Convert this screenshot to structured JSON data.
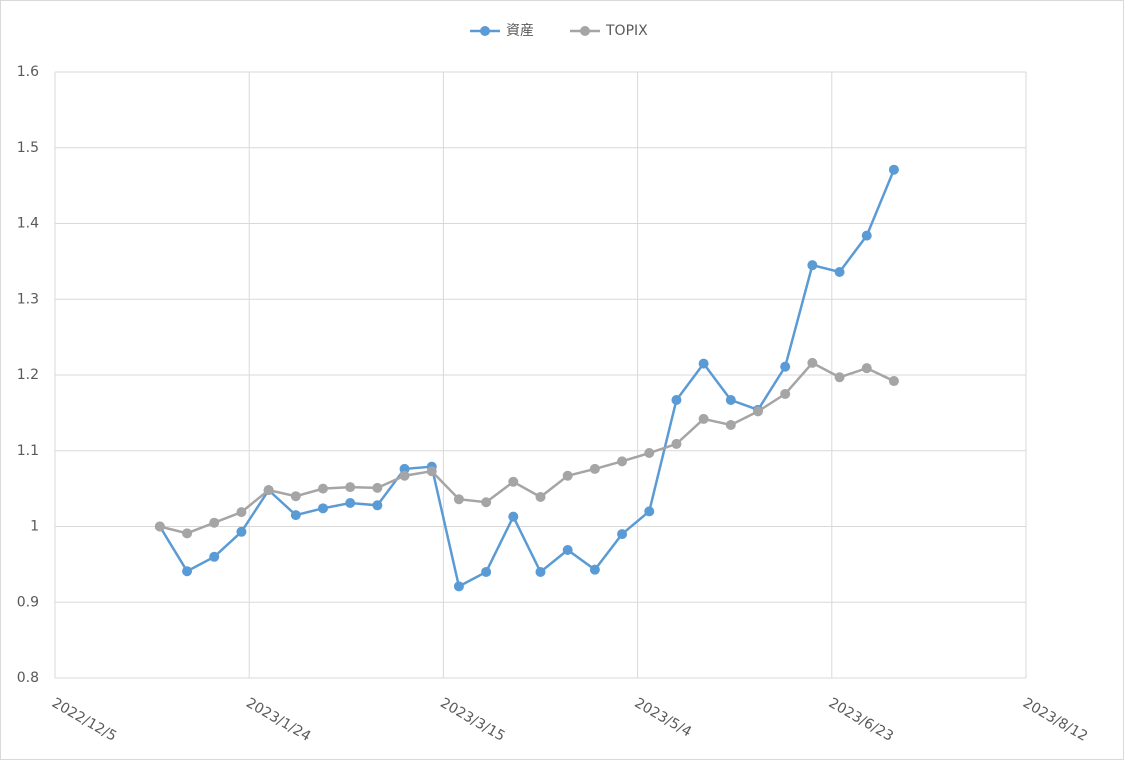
{
  "chart_data": {
    "type": "line",
    "x": [
      "2023/1/1",
      "2023/1/8",
      "2023/1/15",
      "2023/1/22",
      "2023/1/29",
      "2023/2/5",
      "2023/2/12",
      "2023/2/19",
      "2023/2/26",
      "2023/3/5",
      "2023/3/12",
      "2023/3/19",
      "2023/3/26",
      "2023/4/2",
      "2023/4/9",
      "2023/4/16",
      "2023/4/23",
      "2023/4/30",
      "2023/5/7",
      "2023/5/14",
      "2023/5/21",
      "2023/5/28",
      "2023/6/4",
      "2023/6/11",
      "2023/6/18",
      "2023/6/25",
      "2023/7/2",
      "2023/7/9"
    ],
    "series": [
      {
        "name": "資産",
        "color": "#5b9bd5",
        "values": [
          1.0,
          0.941,
          0.96,
          0.993,
          1.048,
          1.015,
          1.024,
          1.031,
          1.028,
          1.076,
          1.079,
          0.921,
          0.94,
          1.013,
          0.94,
          0.969,
          0.943,
          0.99,
          1.02,
          1.167,
          1.215,
          1.167,
          1.154,
          1.211,
          1.345,
          1.336,
          1.384,
          1.471
        ]
      },
      {
        "name": "TOPIX",
        "color": "#a5a5a5",
        "values": [
          1.0,
          0.991,
          1.005,
          1.019,
          1.048,
          1.04,
          1.05,
          1.052,
          1.051,
          1.067,
          1.073,
          1.036,
          1.032,
          1.059,
          1.039,
          1.067,
          1.076,
          1.086,
          1.097,
          1.109,
          1.142,
          1.134,
          1.152,
          1.175,
          1.216,
          1.197,
          1.209,
          1.192
        ]
      }
    ],
    "xlim": [
      "2022/12/5",
      "2023/8/12"
    ],
    "xticks": [
      "2022/12/5",
      "2023/1/24",
      "2023/3/15",
      "2023/5/4",
      "2023/6/23",
      "2023/8/12"
    ],
    "ylim": [
      0.8,
      1.6
    ],
    "yticks": [
      0.8,
      0.9,
      1,
      1.1,
      1.2,
      1.3,
      1.4,
      1.5,
      1.6
    ],
    "grid": true,
    "legend": "top"
  }
}
